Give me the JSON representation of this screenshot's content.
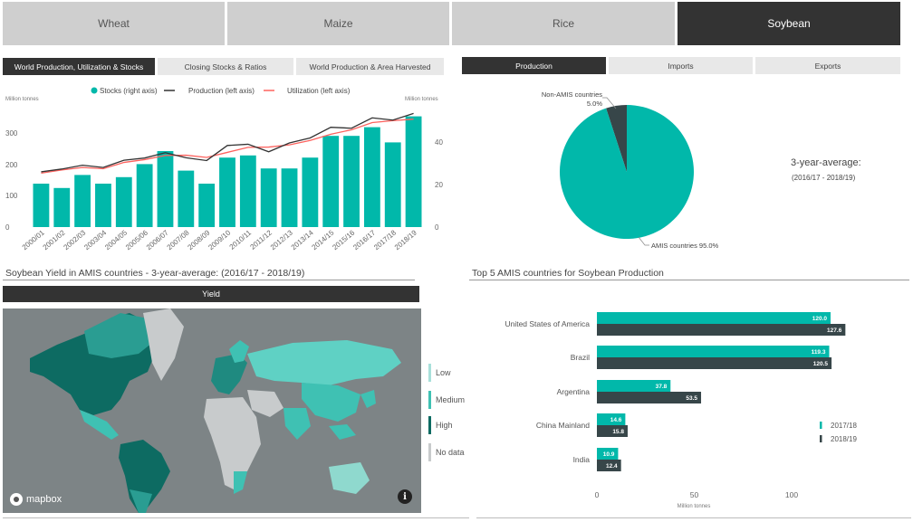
{
  "commodity_tabs": [
    {
      "label": "Wheat",
      "active": false
    },
    {
      "label": "Maize",
      "active": false
    },
    {
      "label": "Rice",
      "active": false
    },
    {
      "label": "Soybean",
      "active": true
    }
  ],
  "left_tabs": [
    {
      "label": "World Production, Utilization & Stocks",
      "active": true
    },
    {
      "label": "Closing Stocks & Ratios",
      "active": false
    },
    {
      "label": "World Production & Area Harvested",
      "active": false
    }
  ],
  "right_tabs": [
    {
      "label": "Production",
      "active": true
    },
    {
      "label": "Imports",
      "active": false
    },
    {
      "label": "Exports",
      "active": false
    }
  ],
  "colors": {
    "teal": "#01b8aa",
    "dark": "#374649",
    "red": "#fd625e",
    "line_dark": "#333333"
  },
  "combo_chart": {
    "left_unit": "Million tonnes",
    "right_unit": "Million tonnes",
    "legend": {
      "stocks": "Stocks (right axis)",
      "production": "Production (left axis)",
      "utilization": "Utilization (left axis)"
    },
    "left_ticks": [
      "0",
      "100",
      "200",
      "300"
    ],
    "right_ticks": [
      "0",
      "20",
      "40"
    ]
  },
  "chart_data": [
    {
      "type": "bar",
      "title": "",
      "categories": [
        "2000/01",
        "2001/02",
        "2002/03",
        "2003/04",
        "2004/05",
        "2005/06",
        "2006/07",
        "2007/08",
        "2008/09",
        "2009/10",
        "2010/11",
        "2011/12",
        "2012/13",
        "2013/14",
        "2014/15",
        "2015/16",
        "2016/17",
        "2017/18",
        "2018/19"
      ],
      "series": [
        {
          "name": "Stocks (right axis)",
          "axis": "right",
          "type": "bar",
          "values": [
            20,
            18,
            24,
            20,
            23,
            29,
            35,
            26,
            20,
            32,
            33,
            27,
            27,
            32,
            42,
            42,
            46,
            39,
            51
          ]
        },
        {
          "name": "Production (left axis)",
          "axis": "left",
          "type": "line",
          "values": [
            176,
            185,
            197,
            190,
            213,
            220,
            237,
            221,
            212,
            260,
            264,
            240,
            268,
            284,
            318,
            315,
            348,
            341,
            362
          ]
        },
        {
          "name": "Utilization (left axis)",
          "axis": "left",
          "type": "line",
          "values": [
            172,
            182,
            190,
            186,
            206,
            215,
            228,
            229,
            222,
            238,
            254,
            255,
            262,
            276,
            296,
            310,
            333,
            339,
            344
          ]
        }
      ],
      "ylim_left": [
        0,
        360
      ],
      "ylim_right": [
        0,
        52
      ],
      "legend_position": "top-center"
    },
    {
      "type": "pie",
      "title": "",
      "labels": [
        "AMIS countries",
        "Non-AMIS countries"
      ],
      "values": [
        95.0,
        5.0
      ],
      "label_text": [
        "AMIS countries 95.0%",
        "Non-AMIS countries",
        "5.0%"
      ]
    },
    {
      "type": "bar",
      "title": "Top 5 AMIS countries for Soybean Production",
      "orientation": "horizontal",
      "categories": [
        "United States of America",
        "Brazil",
        "Argentina",
        "China Mainland",
        "India"
      ],
      "series": [
        {
          "name": "2017/18",
          "values": [
            120.0,
            119.3,
            37.8,
            14.6,
            10.9
          ]
        },
        {
          "name": "2018/19",
          "values": [
            127.6,
            120.5,
            53.5,
            15.8,
            12.4
          ]
        }
      ],
      "xlabel": "Million tonnes",
      "xticks": [
        "0",
        "50",
        "100"
      ],
      "xlim": [
        0,
        140
      ],
      "legend_position": "right"
    }
  ],
  "pie_side": {
    "title": "3-year-average:",
    "subtitle": "(2016/17 - 2018/19)"
  },
  "yield_section": {
    "title": "Soybean Yield in AMIS countries - 3-year-average: (2016/17 - 2018/19)",
    "bar_label": "Yield"
  },
  "map": {
    "attribution": "mapbox",
    "info_label": "i",
    "legend": [
      {
        "label": "Low",
        "color": "#a8e0da"
      },
      {
        "label": "Medium",
        "color": "#3fc1b3"
      },
      {
        "label": "High",
        "color": "#0d6b62"
      },
      {
        "label": "No data",
        "color": "#c8cbcc"
      }
    ]
  }
}
